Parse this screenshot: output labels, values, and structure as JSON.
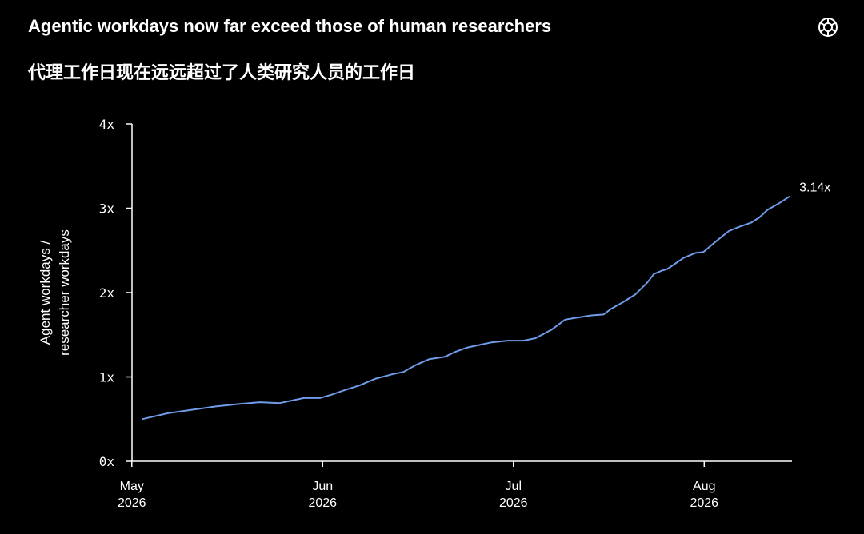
{
  "chart_data": {
    "type": "line",
    "title": "Agentic workdays now far exceed those of human researchers",
    "subtitle": "代理工作日现在远远超过了人类研究人员的工作日",
    "ylabel": [
      "Agent workdays /",
      "researcher workdays"
    ],
    "x": [
      5.054,
      5.189,
      5.314,
      5.44,
      5.566,
      5.67,
      5.775,
      5.901,
      5.985,
      6.047,
      6.11,
      6.194,
      6.278,
      6.362,
      6.424,
      6.487,
      6.558,
      6.642,
      6.697,
      6.76,
      6.823,
      6.886,
      6.97,
      7.053,
      7.116,
      7.2,
      7.271,
      7.325,
      7.409,
      7.472,
      7.514,
      7.577,
      7.64,
      7.702,
      7.736,
      7.778,
      7.807,
      7.891,
      7.954,
      7.995,
      8.058,
      8.129,
      8.184,
      8.247,
      8.289,
      8.331,
      8.393,
      8.448
    ],
    "series": [
      {
        "color": "#6f9be8",
        "values": [
          0.5,
          0.57,
          0.61,
          0.65,
          0.68,
          0.7,
          0.69,
          0.75,
          0.75,
          0.79,
          0.84,
          0.9,
          0.98,
          1.03,
          1.06,
          1.14,
          1.21,
          1.24,
          1.3,
          1.35,
          1.38,
          1.41,
          1.43,
          1.43,
          1.46,
          1.56,
          1.68,
          1.7,
          1.73,
          1.74,
          1.81,
          1.89,
          1.98,
          2.12,
          2.22,
          2.26,
          2.28,
          2.41,
          2.47,
          2.48,
          2.6,
          2.73,
          2.78,
          2.83,
          2.89,
          2.98,
          3.06,
          3.14
        ]
      }
    ],
    "end_label": "3.14x",
    "xlim": [
      4.98,
      8.46
    ],
    "xticks": [
      {
        "value": 5,
        "label": "May\n2026"
      },
      {
        "value": 6,
        "label": "Jun\n2026"
      },
      {
        "value": 7,
        "label": "Jul\n2026"
      },
      {
        "value": 8,
        "label": "Aug\n2026"
      }
    ],
    "ylim": [
      0,
      4
    ],
    "yticks": [
      {
        "value": 0,
        "label": "0x"
      },
      {
        "value": 1,
        "label": "1x"
      },
      {
        "value": 2,
        "label": "2x"
      },
      {
        "value": 3,
        "label": "3x"
      },
      {
        "value": 4,
        "label": "4x"
      }
    ]
  }
}
